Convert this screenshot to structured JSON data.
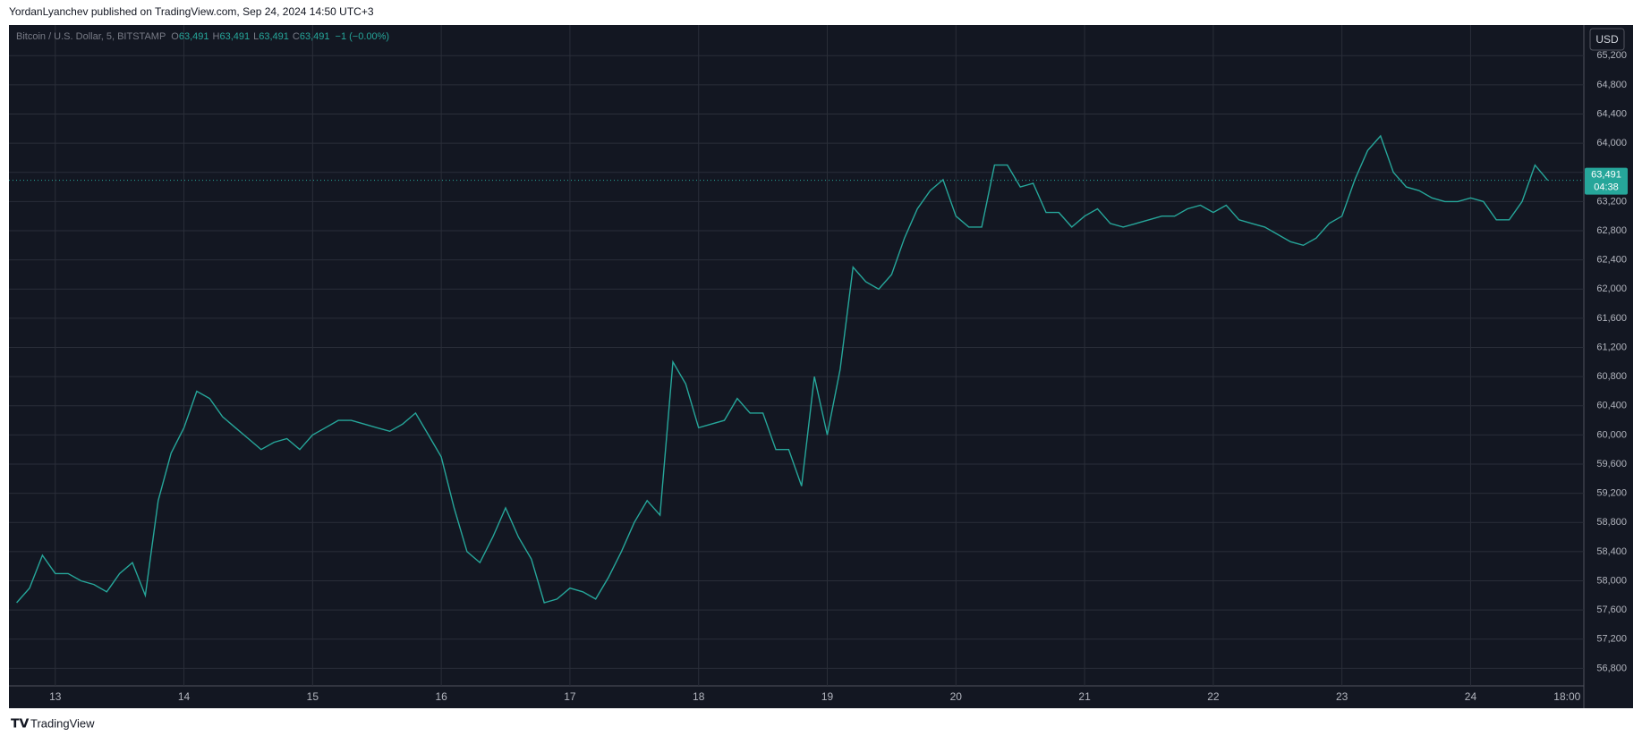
{
  "header": {
    "publisher": "YordanLyanchev published on TradingView.com, Sep 24, 2024 14:50 UTC+3",
    "brand": "TradingView"
  },
  "chart_data": {
    "type": "line",
    "title": "Bitcoin / U.S. Dollar, 5, BITSTAMP",
    "ohlc": [
      {
        "key": "O",
        "value": "63,491"
      },
      {
        "key": "H",
        "value": "63,491"
      },
      {
        "key": "L",
        "value": "63,491"
      },
      {
        "key": "C",
        "value": "63,491"
      }
    ],
    "change": "−1 (−0.00%)",
    "currency": "USD",
    "last_price": {
      "value": 63491,
      "label": "63,491"
    },
    "countdown": "04:38",
    "grid": true,
    "x": [
      12.7,
      12.8,
      12.9,
      13.0,
      13.1,
      13.2,
      13.3,
      13.4,
      13.5,
      13.6,
      13.7,
      13.8,
      13.9,
      14.0,
      14.1,
      14.2,
      14.3,
      14.4,
      14.5,
      14.6,
      14.7,
      14.8,
      14.9,
      15.0,
      15.1,
      15.2,
      15.3,
      15.4,
      15.5,
      15.6,
      15.7,
      15.8,
      15.9,
      16.0,
      16.1,
      16.2,
      16.3,
      16.4,
      16.5,
      16.6,
      16.7,
      16.8,
      16.9,
      17.0,
      17.1,
      17.2,
      17.3,
      17.4,
      17.5,
      17.6,
      17.7,
      17.8,
      17.9,
      18.0,
      18.1,
      18.2,
      18.3,
      18.4,
      18.5,
      18.6,
      18.7,
      18.8,
      18.9,
      19.0,
      19.1,
      19.2,
      19.3,
      19.4,
      19.5,
      19.6,
      19.7,
      19.8,
      19.9,
      20.0,
      20.1,
      20.2,
      20.3,
      20.4,
      20.5,
      20.6,
      20.7,
      20.8,
      20.9,
      21.0,
      21.1,
      21.2,
      21.3,
      21.4,
      21.5,
      21.6,
      21.7,
      21.8,
      21.9,
      22.0,
      22.1,
      22.2,
      22.3,
      22.4,
      22.5,
      22.6,
      22.7,
      22.8,
      22.9,
      23.0,
      23.1,
      23.2,
      23.3,
      23.4,
      23.5,
      23.6,
      23.7,
      23.8,
      23.9,
      24.0,
      24.1,
      24.2,
      24.3,
      24.4,
      24.5,
      24.6
    ],
    "series": [
      {
        "name": "BTCUSD",
        "color": "#26a69a",
        "values": [
          57700,
          57900,
          58350,
          58100,
          58100,
          58000,
          57950,
          57850,
          58100,
          58250,
          57800,
          59100,
          59750,
          60100,
          60600,
          60500,
          60250,
          60100,
          59950,
          59800,
          59900,
          59950,
          59800,
          60000,
          60100,
          60200,
          60200,
          60150,
          60100,
          60050,
          60150,
          60300,
          60000,
          59700,
          59000,
          58400,
          58250,
          58600,
          59000,
          58600,
          58300,
          57700,
          57750,
          57900,
          57850,
          57750,
          58050,
          58400,
          58800,
          59100,
          58900,
          61000,
          60700,
          60100,
          60150,
          60200,
          60500,
          60300,
          60300,
          59800,
          59800,
          59300,
          60800,
          60000,
          60900,
          62300,
          62100,
          62000,
          62200,
          62700,
          63100,
          63350,
          63500,
          63000,
          62850,
          62850,
          63700,
          63700,
          63400,
          63450,
          63050,
          63050,
          62850,
          63000,
          63100,
          62900,
          62850,
          62900,
          62950,
          63000,
          63000,
          63100,
          63150,
          63050,
          63150,
          62950,
          62900,
          62850,
          62750,
          62650,
          62600,
          62700,
          62900,
          63000,
          63500,
          63900,
          64100,
          63600,
          63400,
          63350,
          63250,
          63200,
          63200,
          63250,
          63200,
          62950,
          62950,
          63200,
          63700,
          63491
        ]
      }
    ],
    "xlim": [
      12.64,
      24.88
    ],
    "xticks": [
      13,
      14,
      15,
      16,
      17,
      18,
      19,
      20,
      21,
      22,
      23,
      24,
      {
        "value": 24.75,
        "label": "18:00"
      }
    ],
    "ylim": [
      56560,
      65620
    ],
    "yticks": [
      {
        "value": 56800,
        "label": "56,800"
      },
      {
        "value": 57200,
        "label": "57,200"
      },
      {
        "value": 57600,
        "label": "57,600"
      },
      {
        "value": 58000,
        "label": "58,000"
      },
      {
        "value": 58400,
        "label": "58,400"
      },
      {
        "value": 58800,
        "label": "58,800"
      },
      {
        "value": 59200,
        "label": "59,200"
      },
      {
        "value": 59600,
        "label": "59,600"
      },
      {
        "value": 60000,
        "label": "60,000"
      },
      {
        "value": 60400,
        "label": "60,400"
      },
      {
        "value": 60800,
        "label": "60,800"
      },
      {
        "value": 61200,
        "label": "61,200"
      },
      {
        "value": 61600,
        "label": "61,600"
      },
      {
        "value": 62000,
        "label": "62,000"
      },
      {
        "value": 62400,
        "label": "62,400"
      },
      {
        "value": 62800,
        "label": "62,800"
      },
      {
        "value": 63200,
        "label": "63,200"
      },
      {
        "value": 63600,
        "label": "63,600"
      },
      {
        "value": 64000,
        "label": "64,000"
      },
      {
        "value": 64400,
        "label": "64,400"
      },
      {
        "value": 64800,
        "label": "64,800"
      },
      {
        "value": 65200,
        "label": "65,200"
      }
    ]
  }
}
